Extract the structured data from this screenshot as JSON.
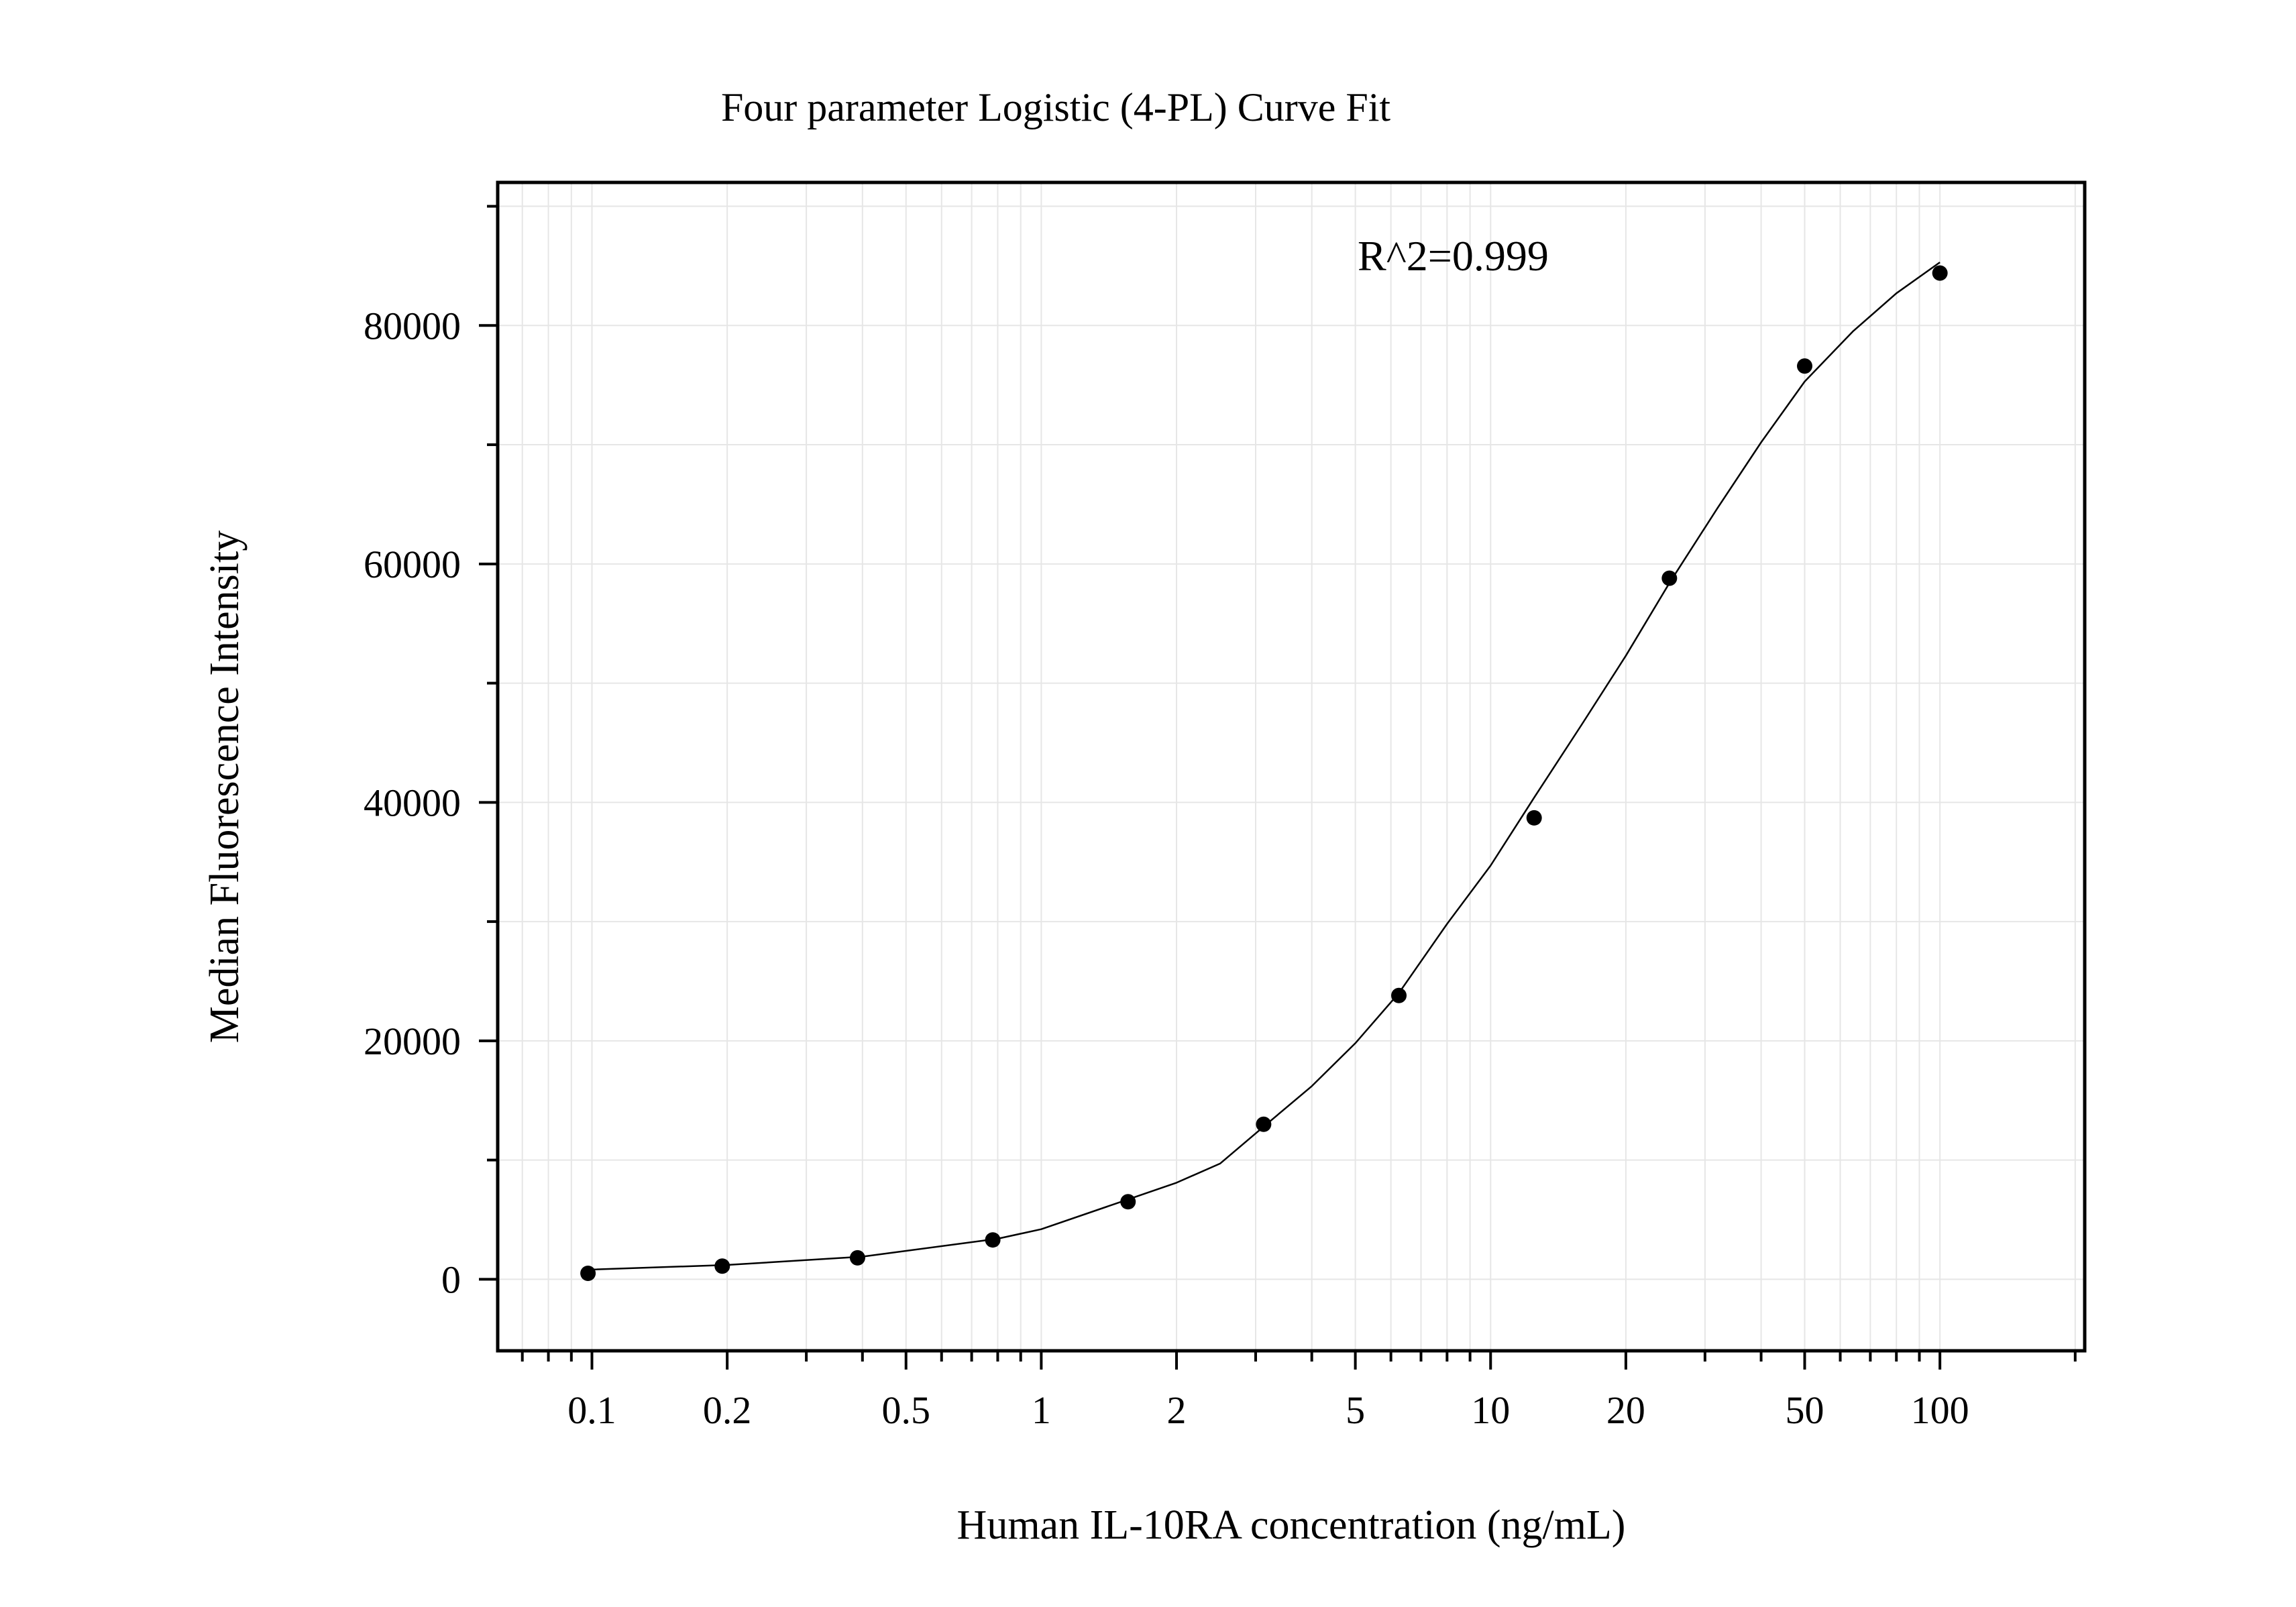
{
  "chart_data": {
    "type": "scatter",
    "title": "Four parameter Logistic (4-PL) Curve Fit",
    "xlabel": "Human IL-10RA concentration (ng/mL)",
    "ylabel": "Median Fluorescence Intensity",
    "annotation": "R^2=0.999",
    "x_scale": "log",
    "xlim": [
      0.0617,
      210
    ],
    "ylim": [
      -6000,
      92000
    ],
    "x_ticks": [
      0.1,
      0.2,
      0.5,
      1,
      2,
      5,
      10,
      20,
      50,
      100
    ],
    "x_tick_labels": [
      "0.1",
      "0.2",
      "0.5",
      "1",
      "2",
      "5",
      "10",
      "20",
      "50",
      "100"
    ],
    "y_ticks": [
      0,
      20000,
      40000,
      60000,
      80000
    ],
    "y_tick_labels": [
      "0",
      "20000",
      "40000",
      "60000",
      "80000"
    ],
    "grid": true,
    "legend": "none",
    "colors": {
      "points": "#000000",
      "curve": "#000000",
      "grid": "#e6e6e6",
      "frame": "#000000"
    },
    "series": [
      {
        "type": "scatter",
        "x": [
          0.098,
          0.195,
          0.39,
          0.78,
          1.56,
          3.125,
          6.25,
          12.5,
          25,
          50,
          100
        ],
        "y": [
          500,
          1100,
          1800,
          3300,
          6500,
          13000,
          23800,
          38700,
          58800,
          76600,
          84400
        ]
      },
      {
        "type": "line",
        "x": [
          0.098,
          0.2,
          0.4,
          0.8,
          1.0,
          1.56,
          2.0,
          2.5,
          3.125,
          4.0,
          5.0,
          6.25,
          8.0,
          10.0,
          12.5,
          16.0,
          20.0,
          25.0,
          32.0,
          40.0,
          50.0,
          64.0,
          80.0,
          100.0
        ],
        "y": [
          800,
          1200,
          1900,
          3400,
          4200,
          6700,
          8100,
          9700,
          12800,
          16200,
          19800,
          24000,
          29800,
          34700,
          40400,
          46600,
          52300,
          58400,
          64700,
          70200,
          75300,
          79500,
          82700,
          85300
        ]
      }
    ]
  }
}
